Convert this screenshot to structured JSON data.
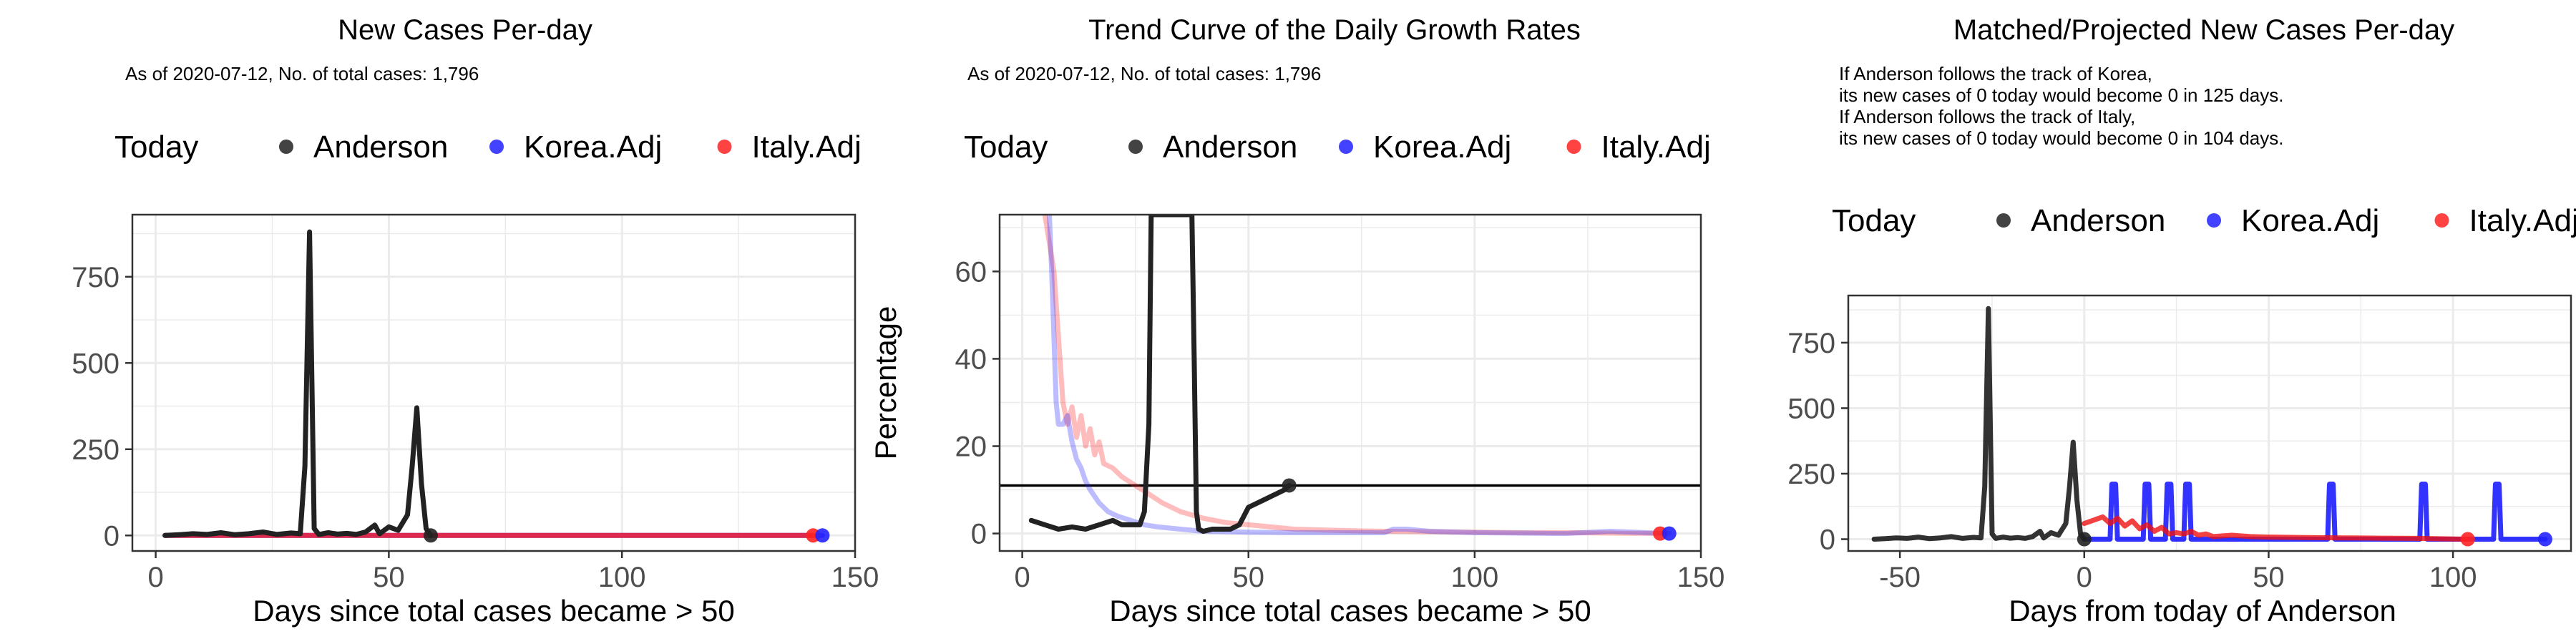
{
  "chart_data": [
    {
      "type": "line",
      "title": "New Cases Per-day",
      "subtitle": [
        "As of 2020-07-12, No. of total cases: 1,796"
      ],
      "legend": {
        "title": "Today",
        "placement": "top",
        "items": [
          "Anderson",
          "Korea.Adj",
          "Italy.Adj"
        ]
      },
      "xlabel": "Days since total cases became > 50",
      "ylabel": "",
      "xlim": [
        -5,
        150
      ],
      "ylim": [
        -45,
        930
      ],
      "xticks": [
        "0",
        "50",
        "100",
        "150"
      ],
      "yticks": [
        "0",
        "250",
        "500",
        "750"
      ],
      "grid": true,
      "series": [
        {
          "name": "Korea.Adj",
          "color": "#2222ff",
          "opacity": 0.8,
          "x": [
            2,
            20,
            40,
            60,
            80,
            100,
            120,
            143
          ],
          "y": [
            0,
            0,
            0,
            0,
            0,
            0,
            0,
            0
          ]
        },
        {
          "name": "Italy.Adj",
          "color": "#ff2222",
          "opacity": 0.8,
          "x": [
            2,
            20,
            40,
            60,
            80,
            100,
            120,
            141
          ],
          "y": [
            0,
            0,
            0,
            0,
            0,
            0,
            0,
            0
          ]
        },
        {
          "name": "Anderson",
          "color": "#222222",
          "opacity": 1,
          "x": [
            2,
            5,
            8,
            11,
            14,
            17,
            20,
            23,
            26,
            29,
            31,
            32,
            33,
            34,
            35,
            37,
            39,
            41,
            43,
            45,
            47,
            48,
            50,
            52,
            54,
            55,
            56,
            57,
            58,
            59
          ],
          "y": [
            0,
            2,
            5,
            3,
            8,
            2,
            5,
            10,
            3,
            7,
            5,
            200,
            880,
            20,
            3,
            8,
            4,
            6,
            3,
            10,
            30,
            5,
            25,
            15,
            60,
            200,
            370,
            150,
            20,
            0
          ]
        }
      ],
      "today_points": [
        {
          "series": "Anderson",
          "x": 59,
          "y": 0
        },
        {
          "series": "Korea.Adj",
          "x": 143,
          "y": 0
        },
        {
          "series": "Italy.Adj",
          "x": 141,
          "y": 0
        }
      ]
    },
    {
      "type": "line",
      "title": "Trend Curve of the Daily Growth Rates",
      "subtitle": [
        "As of 2020-07-12, No. of total cases: 1,796"
      ],
      "legend": {
        "title": "Today",
        "placement": "top",
        "items": [
          "Anderson",
          "Korea.Adj",
          "Italy.Adj"
        ]
      },
      "xlabel": "Days since total cases became > 50",
      "ylabel": "Percentage",
      "xlim": [
        -5,
        150
      ],
      "ylim": [
        -4,
        73
      ],
      "xticks": [
        "0",
        "50",
        "100",
        "150"
      ],
      "yticks": [
        "0",
        "20",
        "40",
        "60"
      ],
      "grid": true,
      "hline": 11,
      "series": [
        {
          "name": "Italy.Adj",
          "color": "#ff2222",
          "opacity": 0.3,
          "x": [
            5,
            7,
            8,
            9,
            10,
            11,
            12,
            13,
            14,
            15,
            16,
            17,
            18,
            20,
            22,
            25,
            28,
            31,
            35,
            40,
            45,
            50,
            55,
            60,
            70,
            80,
            90,
            100,
            110,
            120,
            130,
            141
          ],
          "y": [
            73,
            60,
            45,
            30,
            25,
            29,
            22,
            27,
            20,
            24,
            18,
            21,
            16,
            15,
            13,
            11,
            9,
            7,
            5,
            3.5,
            2.5,
            2,
            1.5,
            1,
            0.7,
            0.5,
            0.4,
            0.3,
            0.2,
            0.2,
            0.1,
            0
          ]
        },
        {
          "name": "Korea.Adj",
          "color": "#2222ff",
          "opacity": 0.3,
          "x": [
            6,
            6.5,
            7,
            7.5,
            8,
            9,
            10,
            11,
            12,
            13,
            14,
            15,
            17,
            19,
            21,
            24,
            27,
            30,
            35,
            40,
            50,
            60,
            70,
            80,
            82,
            85,
            90,
            100,
            110,
            120,
            130,
            143
          ],
          "y": [
            73,
            60,
            45,
            30,
            25,
            25,
            27,
            21,
            17,
            15,
            12,
            10,
            7,
            5,
            4,
            3,
            2,
            1.5,
            1,
            0.5,
            0.3,
            0.2,
            0.2,
            0.2,
            1,
            1,
            0.5,
            0.2,
            0.1,
            0,
            0.5,
            0
          ]
        },
        {
          "name": "Anderson",
          "color": "#222222",
          "opacity": 1,
          "x": [
            2,
            5,
            8,
            11,
            14,
            17,
            20,
            22,
            24,
            26,
            27,
            28,
            28.5,
            29,
            29.5,
            30,
            31,
            32,
            33,
            34,
            35,
            36,
            37,
            37.5,
            38,
            38.5,
            39,
            40,
            42,
            44,
            46,
            48,
            50,
            52,
            54,
            56,
            58,
            59
          ],
          "y": [
            3,
            2,
            1,
            1.5,
            1,
            2,
            3,
            2,
            2,
            2,
            5,
            25,
            73,
            73,
            73,
            73,
            73,
            73,
            73,
            73,
            73,
            73,
            73,
            73,
            40,
            5,
            1,
            0.5,
            1,
            1,
            1,
            2,
            6,
            7,
            8,
            9,
            10,
            11
          ]
        }
      ],
      "today_points": [
        {
          "series": "Anderson",
          "x": 59,
          "y": 11
        },
        {
          "series": "Korea.Adj",
          "x": 143,
          "y": 0
        },
        {
          "series": "Italy.Adj",
          "x": 141,
          "y": 0
        }
      ]
    },
    {
      "type": "line",
      "title": "Matched/Projected New Cases Per-day",
      "subtitle": [
        "If Anderson follows the track of Korea,",
        "its new cases of 0 today would become 0 in 125 days.",
        "If Anderson follows the track of Italy,",
        "its new cases of 0 today would become 0 in 104 days."
      ],
      "legend": {
        "title": "Today",
        "placement": "top",
        "items": [
          "Anderson",
          "Korea.Adj",
          "Italy.Adj"
        ]
      },
      "xlabel": "Days from today of Anderson",
      "ylabel": "",
      "xlim": [
        -64,
        132
      ],
      "ylim": [
        -45,
        930
      ],
      "xticks": [
        "-50",
        "0",
        "50",
        "100"
      ],
      "yticks": [
        "0",
        "250",
        "500",
        "750"
      ],
      "grid": true,
      "series": [
        {
          "name": "Korea.Adj",
          "color": "#0000ff",
          "opacity": 0.8,
          "x": [
            0,
            7,
            7.5,
            8,
            8.5,
            9,
            14,
            16,
            16.5,
            17,
            17.5,
            18,
            21,
            22,
            22.5,
            23,
            23.5,
            24,
            26,
            27,
            27.5,
            28,
            28.5,
            29,
            50,
            66,
            66.5,
            67,
            67.5,
            68,
            85,
            91,
            91.5,
            92,
            92.5,
            93,
            105,
            111,
            111.5,
            112,
            112.5,
            113,
            120,
            125
          ],
          "y": [
            0,
            0,
            210,
            210,
            210,
            0,
            0,
            0,
            210,
            210,
            210,
            0,
            0,
            0,
            210,
            210,
            210,
            0,
            0,
            0,
            210,
            210,
            210,
            0,
            0,
            0,
            210,
            210,
            210,
            0,
            0,
            0,
            210,
            210,
            210,
            0,
            0,
            0,
            210,
            210,
            210,
            0,
            0,
            0
          ]
        },
        {
          "name": "Italy.Adj",
          "color": "#ee1111",
          "opacity": 0.8,
          "x": [
            0,
            3,
            5,
            7,
            9,
            11,
            13,
            15,
            17,
            19,
            21,
            23,
            25,
            27,
            29,
            31,
            33,
            35,
            40,
            45,
            50,
            60,
            70,
            80,
            90,
            104
          ],
          "y": [
            60,
            75,
            85,
            60,
            80,
            50,
            70,
            40,
            55,
            30,
            45,
            20,
            25,
            20,
            30,
            15,
            20,
            10,
            15,
            10,
            8,
            6,
            5,
            4,
            3,
            0
          ]
        },
        {
          "name": "Anderson",
          "color": "#000000",
          "opacity": 0.8,
          "x": [
            -57,
            -54,
            -51,
            -48,
            -45,
            -42,
            -39,
            -36,
            -33,
            -30,
            -28,
            -27,
            -26,
            -25,
            -24,
            -22,
            -20,
            -18,
            -16,
            -14,
            -12,
            -11,
            -9,
            -7,
            -5,
            -4,
            -3,
            -2,
            -1,
            0
          ],
          "y": [
            0,
            2,
            5,
            3,
            8,
            2,
            5,
            10,
            3,
            7,
            5,
            200,
            880,
            20,
            3,
            8,
            4,
            6,
            3,
            10,
            30,
            5,
            25,
            15,
            60,
            200,
            370,
            150,
            20,
            0
          ]
        }
      ],
      "today_points": [
        {
          "series": "Anderson",
          "x": 0,
          "y": 0
        },
        {
          "series": "Korea.Adj",
          "x": 125,
          "y": 0
        },
        {
          "series": "Italy.Adj",
          "x": 104,
          "y": 0
        }
      ]
    }
  ]
}
